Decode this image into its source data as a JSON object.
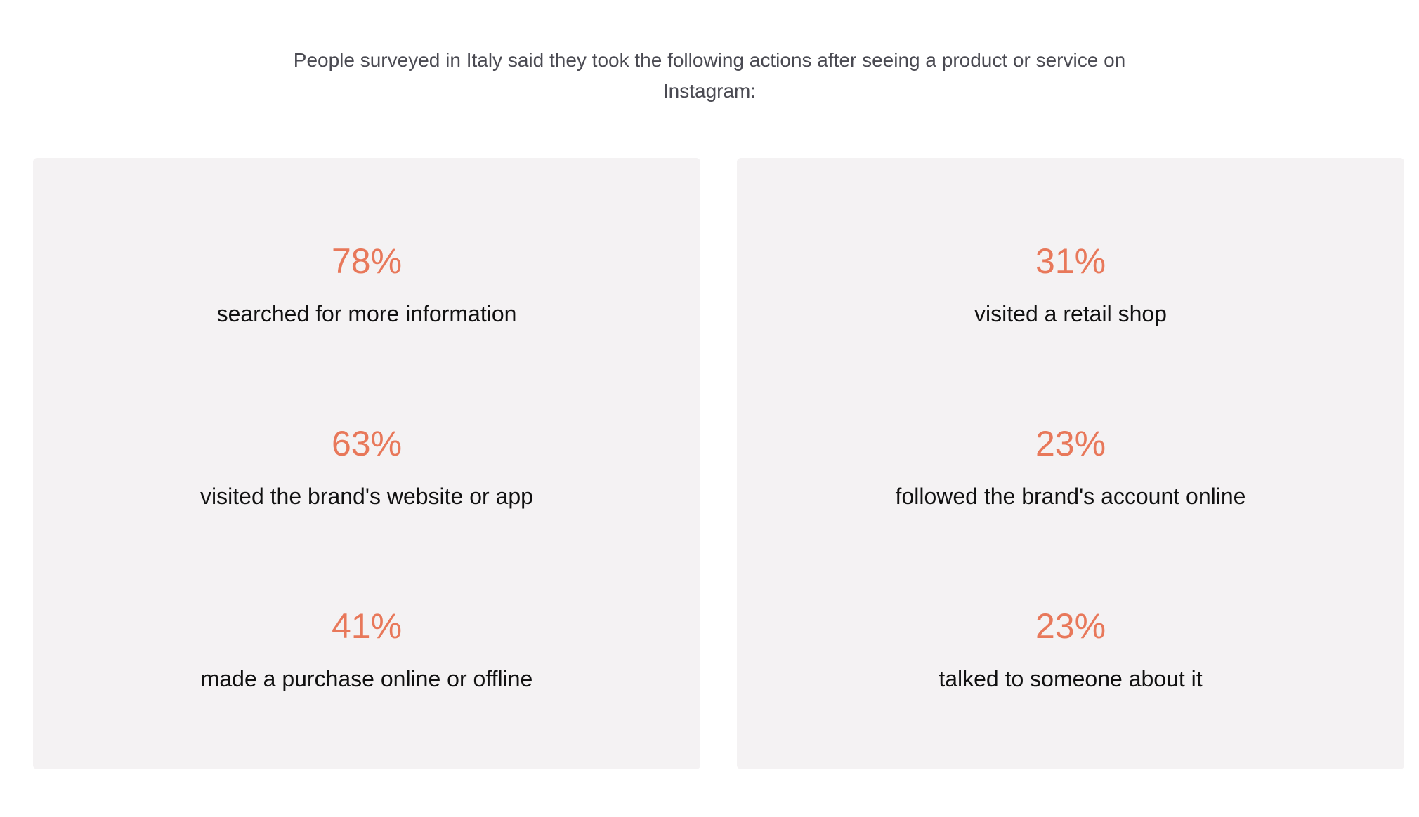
{
  "intro": {
    "text": "People surveyed in Italy said they took the following actions after seeing a product or service on Instagram:"
  },
  "colors": {
    "accent": "#e8785a",
    "panel_bg": "#f4f2f3",
    "body_text": "#111111",
    "intro_text": "#4a4a52"
  },
  "panels": [
    {
      "stats": [
        {
          "value": "78%",
          "label": "searched for more information"
        },
        {
          "value": "63%",
          "label": "visited the brand's website or app"
        },
        {
          "value": "41%",
          "label": "made a purchase online or offline"
        }
      ]
    },
    {
      "stats": [
        {
          "value": "31%",
          "label": "visited a retail shop"
        },
        {
          "value": "23%",
          "label": "followed the brand's account online"
        },
        {
          "value": "23%",
          "label": "talked to someone about it"
        }
      ]
    }
  ]
}
